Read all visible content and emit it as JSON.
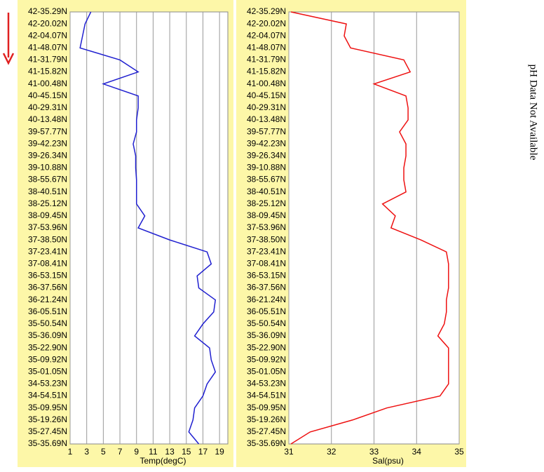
{
  "chart_data": [
    {
      "type": "line",
      "orientation": "horizontal",
      "x_label": "Temp(degC)",
      "color": "#2020d0",
      "grid": true,
      "categories": [
        "42-35.29N",
        "42-20.02N",
        "42-04.07N",
        "41-48.07N",
        "41-31.79N",
        "41-15.82N",
        "41-00.48N",
        "40-45.15N",
        "40-29.31N",
        "40-13.48N",
        "39-57.77N",
        "39-42.23N",
        "39-26.34N",
        "39-10.88N",
        "38-55.67N",
        "38-40.51N",
        "38-25.12N",
        "38-09.45N",
        "37-53.96N",
        "37-38.50N",
        "37-23.41N",
        "37-08.41N",
        "36-53.15N",
        "36-37.56N",
        "36-21.24N",
        "36-05.51N",
        "35-50.54N",
        "35-36.09N",
        "35-22.90N",
        "35-09.92N",
        "35-01.05N",
        "34-53.23N",
        "34-54.51N",
        "35-09.95N",
        "35-19.26N",
        "35-27.45N",
        "35-35.69N"
      ],
      "values": [
        3.5,
        2.8,
        2.5,
        2.2,
        7,
        9.2,
        5,
        9.2,
        9.2,
        9,
        9,
        8.6,
        8.9,
        8.9,
        9,
        9,
        9,
        10,
        9.2,
        13,
        17.5,
        18,
        16.3,
        16.5,
        18.5,
        18.3,
        17,
        16,
        17.8,
        18,
        18.5,
        17.5,
        17,
        16,
        15.8,
        15.3,
        16.5
      ],
      "xlim": [
        1,
        20
      ],
      "xticks": [
        1,
        3,
        5,
        7,
        9,
        11,
        13,
        15,
        17,
        19
      ]
    },
    {
      "type": "line",
      "orientation": "horizontal",
      "x_label": "Sal(psu)",
      "color": "#ee1111",
      "grid": true,
      "categories": [
        "42-35.29N",
        "42-20.02N",
        "42-04.07N",
        "41-48.07N",
        "41-31.79N",
        "41-15.82N",
        "41-00.48N",
        "40-45.15N",
        "40-29.31N",
        "40-13.48N",
        "39-57.77N",
        "39-42.23N",
        "39-26.34N",
        "39-10.88N",
        "38-55.67N",
        "38-40.51N",
        "38-25.12N",
        "38-09.45N",
        "37-53.96N",
        "37-38.50N",
        "37-23.41N",
        "37-08.41N",
        "36-53.15N",
        "36-37.56N",
        "36-21.24N",
        "36-05.51N",
        "35-50.54N",
        "35-36.09N",
        "35-22.90N",
        "35-09.92N",
        "35-01.05N",
        "34-53.23N",
        "34-54.51N",
        "35-09.95N",
        "35-19.26N",
        "35-27.45N",
        "35-35.69N"
      ],
      "values": [
        31.05,
        32.35,
        32.3,
        32.45,
        33.7,
        33.85,
        33.0,
        33.75,
        33.8,
        33.8,
        33.6,
        33.75,
        33.75,
        33.7,
        33.7,
        33.75,
        33.2,
        33.5,
        33.4,
        34.1,
        34.7,
        34.75,
        34.75,
        34.75,
        34.7,
        34.7,
        34.65,
        34.5,
        34.75,
        34.75,
        34.75,
        34.75,
        34.55,
        33.3,
        32.5,
        31.5,
        31.05
      ],
      "xlim": [
        31,
        35
      ],
      "xticks": [
        31,
        32,
        33,
        34,
        35
      ]
    }
  ],
  "note": "pH Data Not Available"
}
